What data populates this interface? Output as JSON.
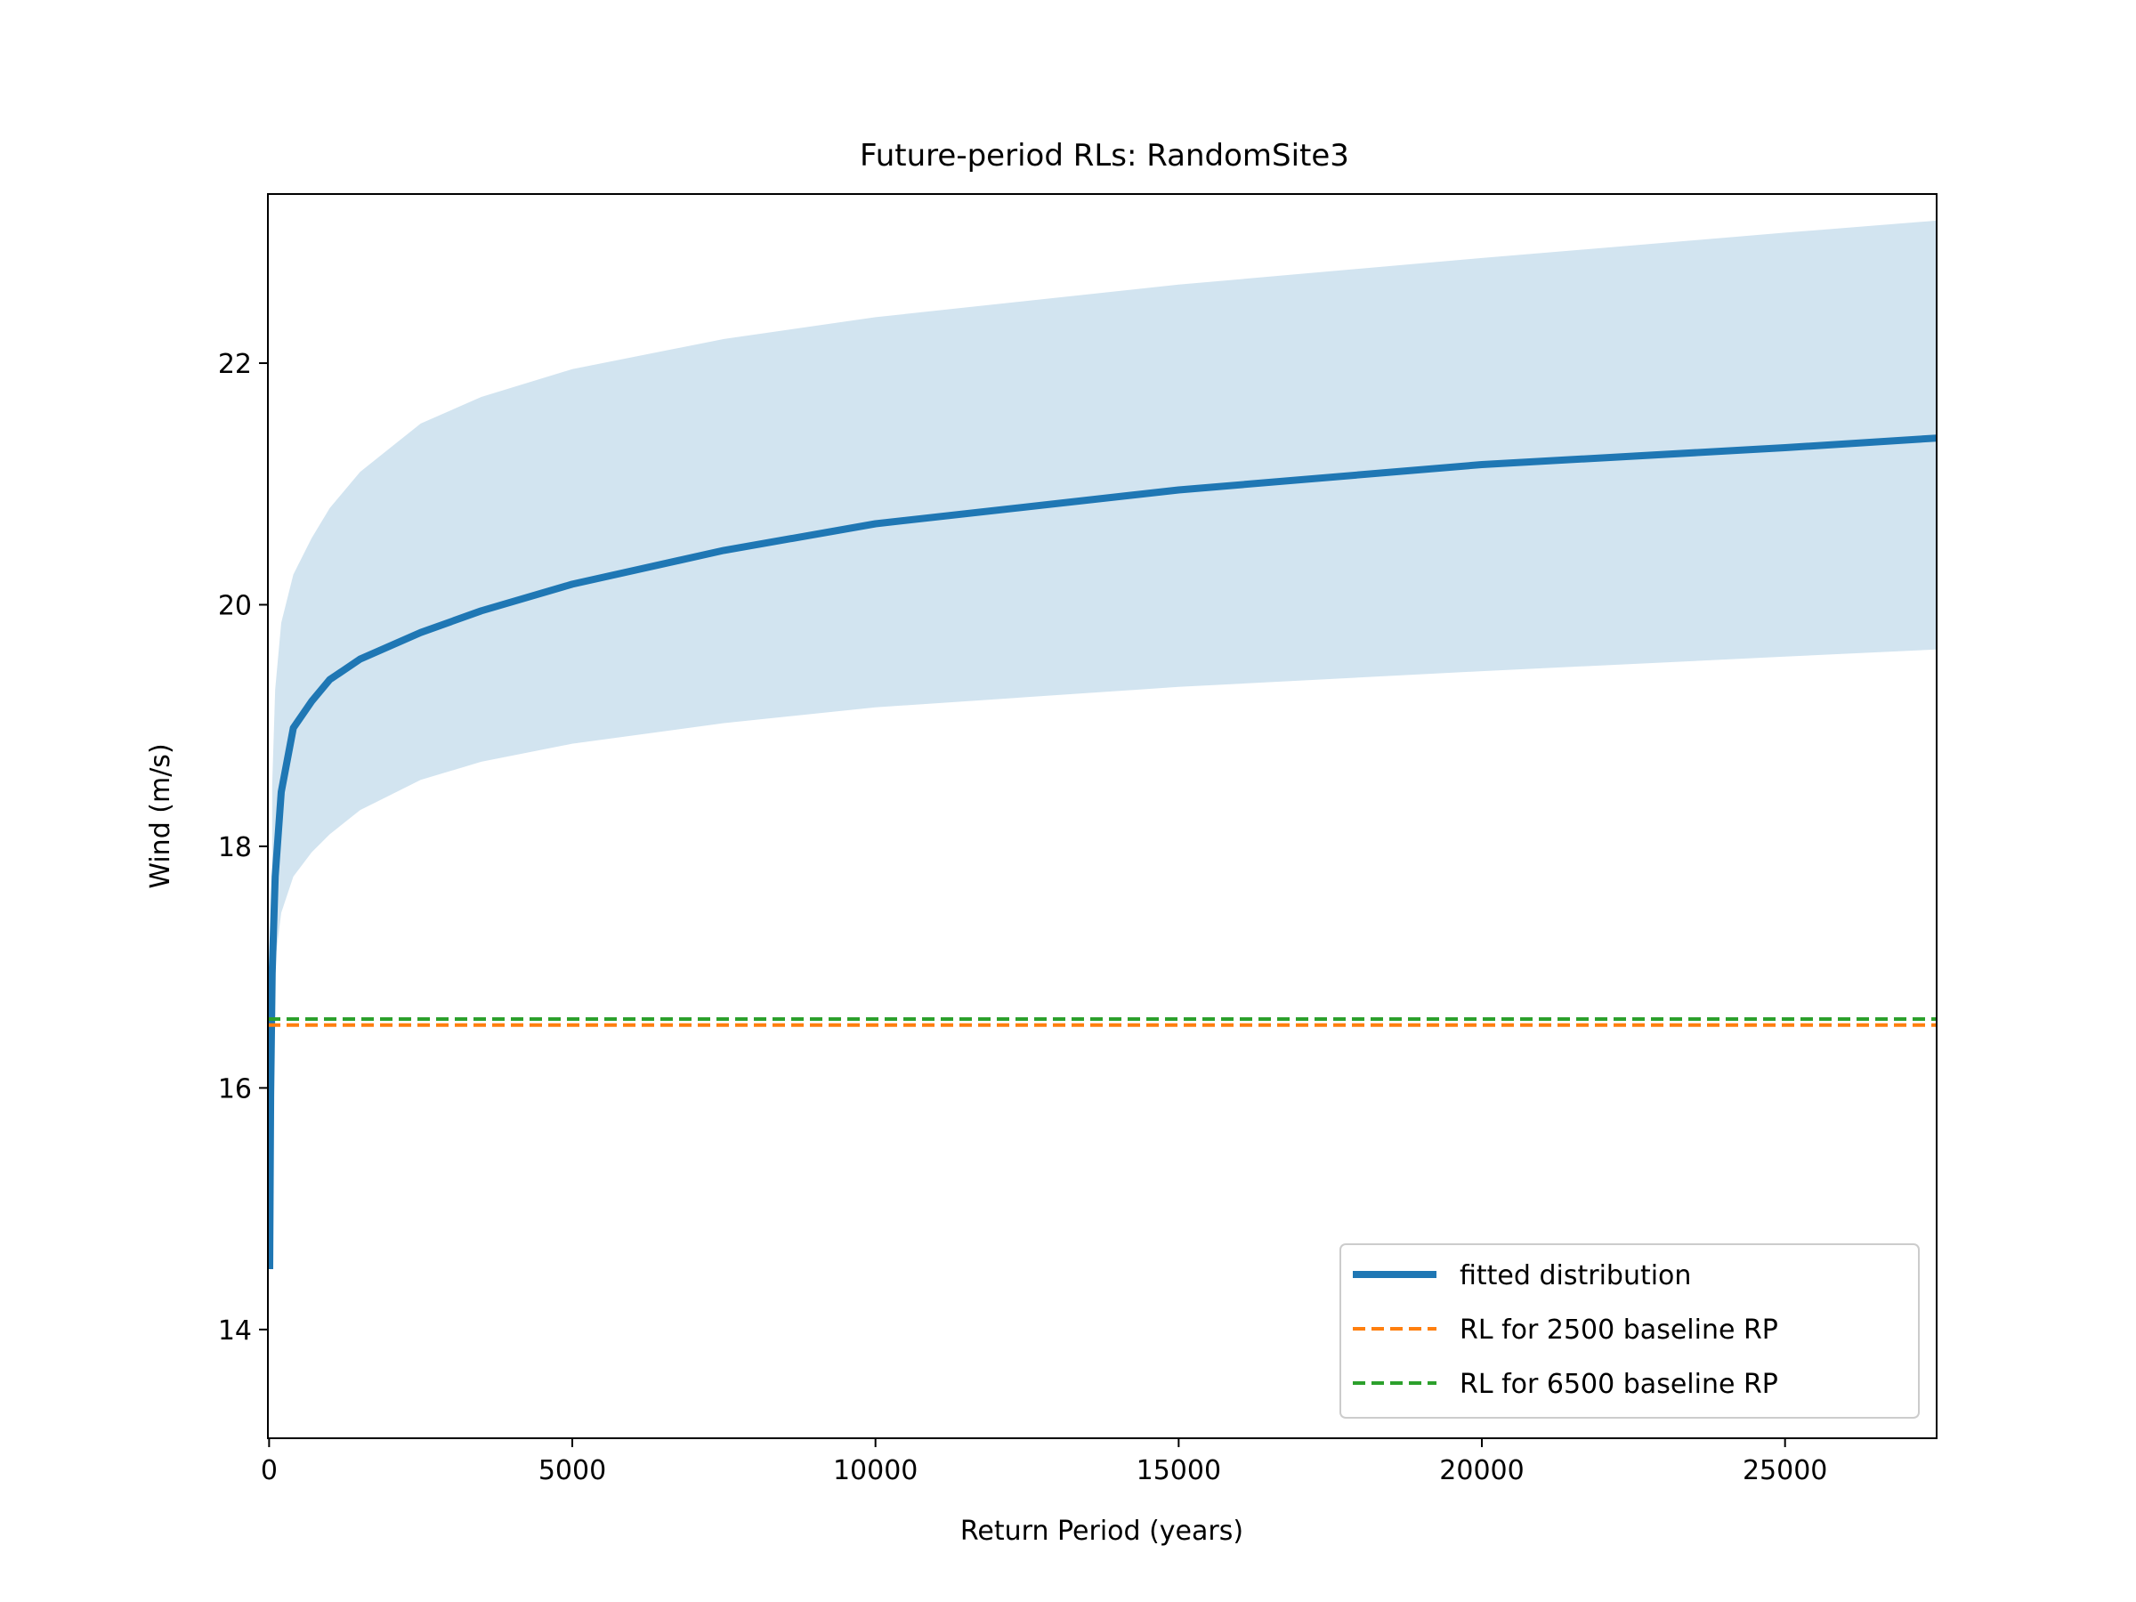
{
  "chart_data": {
    "type": "line",
    "title": "Future-period RLs: RandomSite3",
    "xlabel": "Return Period (years)",
    "ylabel": "Wind (m/s)",
    "xlim": [
      -20,
      27500
    ],
    "ylim": [
      13.1,
      23.4
    ],
    "xticks": [
      0,
      5000,
      10000,
      15000,
      20000,
      25000
    ],
    "yticks": [
      14,
      16,
      18,
      20,
      22
    ],
    "grid": false,
    "legend_position": "lower-right",
    "series": [
      {
        "name": "fitted distribution",
        "style": "solid",
        "color": "#1f77b4",
        "x": [
          10,
          25,
          50,
          100,
          200,
          400,
          700,
          1000,
          1500,
          2500,
          3500,
          5000,
          7500,
          10000,
          15000,
          20000,
          25000,
          27500
        ],
        "y": [
          14.5,
          15.95,
          16.95,
          17.75,
          18.45,
          18.98,
          19.2,
          19.38,
          19.55,
          19.77,
          19.95,
          20.17,
          20.45,
          20.67,
          20.95,
          21.16,
          21.3,
          21.38
        ]
      },
      {
        "name": "RL for 2500 baseline RP",
        "style": "dashed",
        "color": "#ff7f0e",
        "x": [
          -20,
          27500
        ],
        "y": [
          16.52,
          16.52
        ]
      },
      {
        "name": "RL for 6500 baseline RP",
        "style": "dashed",
        "color": "#2ca02c",
        "x": [
          -20,
          27500
        ],
        "y": [
          16.57,
          16.57
        ]
      }
    ],
    "band": {
      "color": "#1f77b4",
      "x": [
        50,
        100,
        200,
        400,
        700,
        1000,
        1500,
        2500,
        3500,
        5000,
        7500,
        10000,
        15000,
        20000,
        25000,
        27500
      ],
      "lower": [
        16.6,
        17.05,
        17.45,
        17.75,
        17.95,
        18.1,
        18.3,
        18.55,
        18.7,
        18.85,
        19.02,
        19.15,
        19.32,
        19.45,
        19.57,
        19.63
      ],
      "upper": [
        18.5,
        19.3,
        19.85,
        20.25,
        20.55,
        20.8,
        21.1,
        21.5,
        21.72,
        21.95,
        22.2,
        22.38,
        22.65,
        22.87,
        23.08,
        23.18
      ]
    }
  }
}
